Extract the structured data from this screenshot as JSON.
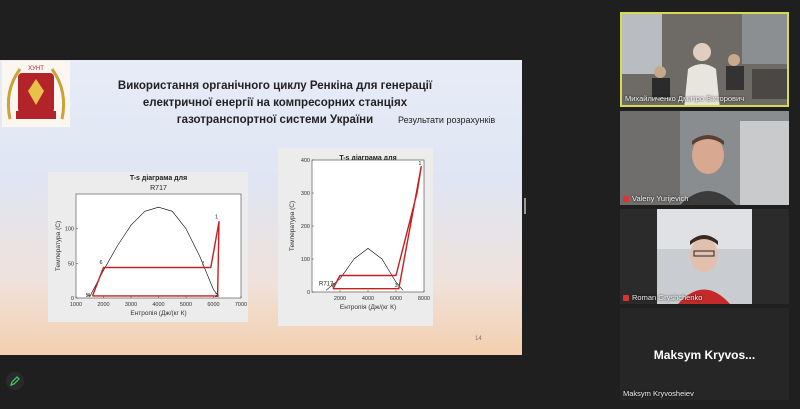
{
  "slide": {
    "logo_text": "ХУНТ",
    "title_lines": [
      "Використання органічного циклу Ренкіна для генерації",
      "електричної енергії на компресорних станціях",
      "газотранспортної системи України"
    ],
    "results_label": "Результати розрахунків",
    "page_number": "14"
  },
  "chart_data": [
    {
      "type": "line",
      "title": "T-s діаграма для",
      "subtitle": "R717",
      "xlabel": "Ентропія (Дж/(кг К)",
      "ylabel": "Температура (С)",
      "xlim": [
        1000,
        7000
      ],
      "ylim": [
        0,
        150
      ],
      "xticks": [
        "1000",
        "2000",
        "3000",
        "4000",
        "5000",
        "6000",
        "7000"
      ],
      "yticks": [
        "0",
        "50",
        "100"
      ],
      "series": [
        {
          "role": "saturation-dome",
          "color": "#000000",
          "x": [
            1500,
            2000,
            2500,
            3000,
            3500,
            4000,
            4500,
            5000,
            5500,
            6000,
            6200
          ],
          "y": [
            2,
            40,
            75,
            105,
            125,
            131,
            125,
            100,
            60,
            12,
            2
          ]
        },
        {
          "role": "cycle",
          "color": "#c81e1e",
          "x": [
            1600,
            2000,
            5900,
            6200,
            6150,
            1600
          ],
          "y": [
            3,
            44,
            44,
            110,
            3,
            3
          ]
        }
      ],
      "point_labels": [
        "1",
        "2",
        "4",
        "5",
        "6",
        "7"
      ]
    },
    {
      "type": "line",
      "title": "T-s діаграма для",
      "subtitle": "R717",
      "xlabel": "Ентропія (Дж/(кг К)",
      "ylabel": "Температура (С)",
      "xlim": [
        0,
        8000
      ],
      "ylim": [
        0,
        400
      ],
      "xticks": [
        "2000",
        "4000",
        "6000",
        "8000"
      ],
      "yticks": [
        "0",
        "100",
        "200",
        "300",
        "400"
      ],
      "legend_label": "R717",
      "series": [
        {
          "role": "saturation-dome",
          "color": "#000000",
          "x": [
            1000,
            2000,
            3000,
            4000,
            5000,
            6000,
            6500
          ],
          "y": [
            5,
            40,
            100,
            132,
            100,
            30,
            5
          ]
        },
        {
          "role": "cycle",
          "color": "#c81e1e",
          "x": [
            1500,
            2000,
            6000,
            7500,
            7800,
            6200,
            1500
          ],
          "y": [
            10,
            50,
            50,
            300,
            380,
            10,
            10
          ]
        }
      ],
      "point_labels": [
        "1",
        "2",
        "3"
      ]
    }
  ],
  "participants": [
    {
      "name": "Михайличенко Дмитро Вікторович",
      "active_speaker": true
    },
    {
      "name": "Valeriy Yurijevich",
      "muted": true
    },
    {
      "name": "Roman Gryshchenko",
      "muted": true
    },
    {
      "name": "Maksym Kryvosheiev",
      "display": "Maksym  Kryvos..."
    }
  ]
}
